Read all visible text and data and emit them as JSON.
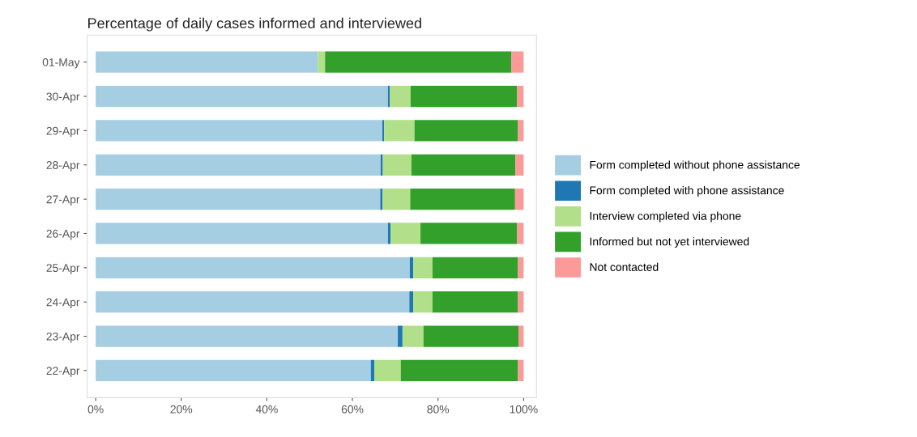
{
  "chart_data": {
    "type": "bar",
    "orientation": "horizontal",
    "stacked": true,
    "title": "Percentage of daily cases informed and interviewed",
    "categories": [
      "01-May",
      "30-Apr",
      "29-Apr",
      "28-Apr",
      "27-Apr",
      "26-Apr",
      "25-Apr",
      "24-Apr",
      "23-Apr",
      "22-Apr"
    ],
    "series": [
      {
        "name": "Form completed without phone assistance",
        "color": "#a6cee3",
        "values": [
          51.9,
          68.3,
          67.0,
          66.6,
          66.5,
          68.3,
          73.4,
          73.3,
          70.6,
          64.3
        ]
      },
      {
        "name": "Form completed with phone assistance",
        "color": "#1f78b4",
        "values": [
          0,
          0.4,
          0.4,
          0.5,
          0.5,
          0.6,
          0.8,
          0.9,
          1.1,
          0.8
        ]
      },
      {
        "name": "Interview completed via phone",
        "color": "#b2df8a",
        "values": [
          1.7,
          4.9,
          7.1,
          6.7,
          6.5,
          7.0,
          4.5,
          4.5,
          4.9,
          6.2
        ]
      },
      {
        "name": "Informed but not yet interviewed",
        "color": "#33a02c",
        "values": [
          43.5,
          24.9,
          24.2,
          24.3,
          24.5,
          22.6,
          20.0,
          20.0,
          22.2,
          27.4
        ]
      },
      {
        "name": "Not contacted",
        "color": "#fb9a99",
        "values": [
          2.9,
          1.5,
          1.3,
          1.9,
          2.0,
          1.5,
          1.3,
          1.3,
          1.2,
          1.3
        ]
      }
    ],
    "xlim": [
      -2,
      103
    ],
    "xticks": [
      {
        "value": 0,
        "label": "0%"
      },
      {
        "value": 20,
        "label": "20%"
      },
      {
        "value": 40,
        "label": "40%"
      },
      {
        "value": 60,
        "label": "60%"
      },
      {
        "value": 80,
        "label": "80%"
      },
      {
        "value": 100,
        "label": "100%"
      }
    ],
    "legend": "right",
    "grid": false
  }
}
